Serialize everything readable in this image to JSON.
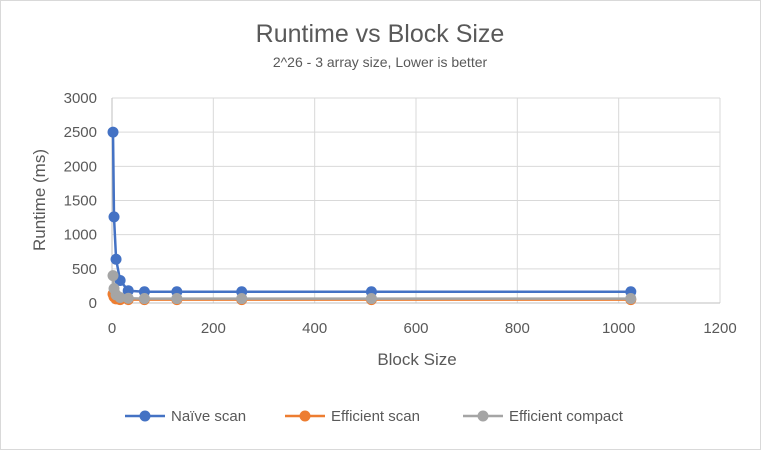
{
  "chart_data": {
    "type": "line",
    "title": "Runtime vs Block Size",
    "subtitle": "2^26 - 3 array size, Lower is better",
    "xlabel": "Block Size",
    "ylabel": "Runtime (ms)",
    "xlim": [
      0,
      1200
    ],
    "ylim": [
      0,
      3000
    ],
    "xticks": [
      0,
      200,
      400,
      600,
      800,
      1000,
      1200
    ],
    "yticks": [
      0,
      500,
      1000,
      1500,
      2000,
      2500,
      3000
    ],
    "grid": true,
    "legend_position": "bottom",
    "series": [
      {
        "name": "Naïve scan",
        "color": "#4472C4",
        "x": [
          2,
          4,
          8,
          16,
          32,
          64,
          128,
          256,
          512,
          1024
        ],
        "y": [
          2500,
          1260,
          640,
          330,
          180,
          165,
          165,
          165,
          165,
          165
        ]
      },
      {
        "name": "Efficient scan",
        "color": "#ED7D31",
        "x": [
          2,
          4,
          8,
          16,
          32,
          64,
          128,
          256,
          512,
          1024
        ],
        "y": [
          130,
          90,
          60,
          50,
          50,
          50,
          50,
          50,
          50,
          50
        ]
      },
      {
        "name": "Efficient compact",
        "color": "#A5A5A5",
        "x": [
          2,
          4,
          8,
          16,
          32,
          64,
          128,
          256,
          512,
          1024
        ],
        "y": [
          400,
          210,
          120,
          80,
          70,
          65,
          65,
          65,
          65,
          65
        ]
      }
    ]
  }
}
